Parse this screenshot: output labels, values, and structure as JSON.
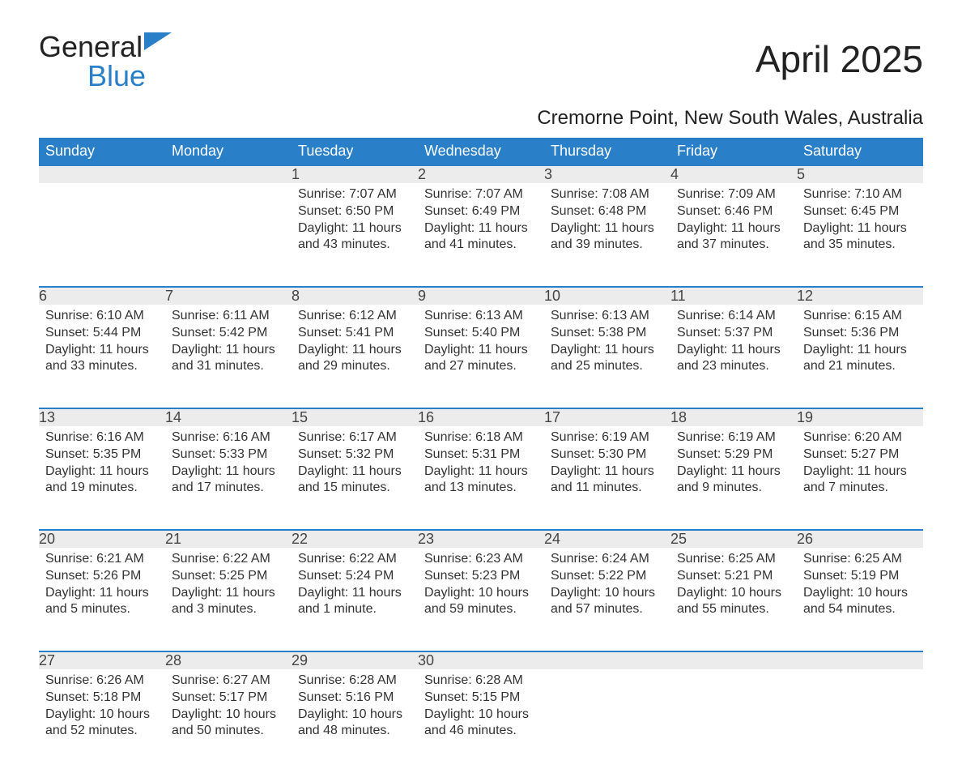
{
  "brand": {
    "word1": "General",
    "word2": "Blue",
    "text_color": "#222222",
    "accent_color": "#2a7fc9"
  },
  "title": "April 2025",
  "subtitle": "Cremorne Point, New South Wales, Australia",
  "colors": {
    "header_bg": "#2a7fc9",
    "header_text": "#ffffff",
    "daynum_bg": "#ececec",
    "daynum_border": "#2a7fc9",
    "body_text": "#333333",
    "page_bg": "#ffffff"
  },
  "typography": {
    "title_fontsize": 46,
    "subtitle_fontsize": 24,
    "header_fontsize": 18,
    "cell_fontsize": 16
  },
  "calendar": {
    "type": "table",
    "columns": [
      "Sunday",
      "Monday",
      "Tuesday",
      "Wednesday",
      "Thursday",
      "Friday",
      "Saturday"
    ],
    "weeks": [
      [
        null,
        null,
        {
          "day": "1",
          "sunrise": "Sunrise: 7:07 AM",
          "sunset": "Sunset: 6:50 PM",
          "daylight": "Daylight: 11 hours and 43 minutes."
        },
        {
          "day": "2",
          "sunrise": "Sunrise: 7:07 AM",
          "sunset": "Sunset: 6:49 PM",
          "daylight": "Daylight: 11 hours and 41 minutes."
        },
        {
          "day": "3",
          "sunrise": "Sunrise: 7:08 AM",
          "sunset": "Sunset: 6:48 PM",
          "daylight": "Daylight: 11 hours and 39 minutes."
        },
        {
          "day": "4",
          "sunrise": "Sunrise: 7:09 AM",
          "sunset": "Sunset: 6:46 PM",
          "daylight": "Daylight: 11 hours and 37 minutes."
        },
        {
          "day": "5",
          "sunrise": "Sunrise: 7:10 AM",
          "sunset": "Sunset: 6:45 PM",
          "daylight": "Daylight: 11 hours and 35 minutes."
        }
      ],
      [
        {
          "day": "6",
          "sunrise": "Sunrise: 6:10 AM",
          "sunset": "Sunset: 5:44 PM",
          "daylight": "Daylight: 11 hours and 33 minutes."
        },
        {
          "day": "7",
          "sunrise": "Sunrise: 6:11 AM",
          "sunset": "Sunset: 5:42 PM",
          "daylight": "Daylight: 11 hours and 31 minutes."
        },
        {
          "day": "8",
          "sunrise": "Sunrise: 6:12 AM",
          "sunset": "Sunset: 5:41 PM",
          "daylight": "Daylight: 11 hours and 29 minutes."
        },
        {
          "day": "9",
          "sunrise": "Sunrise: 6:13 AM",
          "sunset": "Sunset: 5:40 PM",
          "daylight": "Daylight: 11 hours and 27 minutes."
        },
        {
          "day": "10",
          "sunrise": "Sunrise: 6:13 AM",
          "sunset": "Sunset: 5:38 PM",
          "daylight": "Daylight: 11 hours and 25 minutes."
        },
        {
          "day": "11",
          "sunrise": "Sunrise: 6:14 AM",
          "sunset": "Sunset: 5:37 PM",
          "daylight": "Daylight: 11 hours and 23 minutes."
        },
        {
          "day": "12",
          "sunrise": "Sunrise: 6:15 AM",
          "sunset": "Sunset: 5:36 PM",
          "daylight": "Daylight: 11 hours and 21 minutes."
        }
      ],
      [
        {
          "day": "13",
          "sunrise": "Sunrise: 6:16 AM",
          "sunset": "Sunset: 5:35 PM",
          "daylight": "Daylight: 11 hours and 19 minutes."
        },
        {
          "day": "14",
          "sunrise": "Sunrise: 6:16 AM",
          "sunset": "Sunset: 5:33 PM",
          "daylight": "Daylight: 11 hours and 17 minutes."
        },
        {
          "day": "15",
          "sunrise": "Sunrise: 6:17 AM",
          "sunset": "Sunset: 5:32 PM",
          "daylight": "Daylight: 11 hours and 15 minutes."
        },
        {
          "day": "16",
          "sunrise": "Sunrise: 6:18 AM",
          "sunset": "Sunset: 5:31 PM",
          "daylight": "Daylight: 11 hours and 13 minutes."
        },
        {
          "day": "17",
          "sunrise": "Sunrise: 6:19 AM",
          "sunset": "Sunset: 5:30 PM",
          "daylight": "Daylight: 11 hours and 11 minutes."
        },
        {
          "day": "18",
          "sunrise": "Sunrise: 6:19 AM",
          "sunset": "Sunset: 5:29 PM",
          "daylight": "Daylight: 11 hours and 9 minutes."
        },
        {
          "day": "19",
          "sunrise": "Sunrise: 6:20 AM",
          "sunset": "Sunset: 5:27 PM",
          "daylight": "Daylight: 11 hours and 7 minutes."
        }
      ],
      [
        {
          "day": "20",
          "sunrise": "Sunrise: 6:21 AM",
          "sunset": "Sunset: 5:26 PM",
          "daylight": "Daylight: 11 hours and 5 minutes."
        },
        {
          "day": "21",
          "sunrise": "Sunrise: 6:22 AM",
          "sunset": "Sunset: 5:25 PM",
          "daylight": "Daylight: 11 hours and 3 minutes."
        },
        {
          "day": "22",
          "sunrise": "Sunrise: 6:22 AM",
          "sunset": "Sunset: 5:24 PM",
          "daylight": "Daylight: 11 hours and 1 minute."
        },
        {
          "day": "23",
          "sunrise": "Sunrise: 6:23 AM",
          "sunset": "Sunset: 5:23 PM",
          "daylight": "Daylight: 10 hours and 59 minutes."
        },
        {
          "day": "24",
          "sunrise": "Sunrise: 6:24 AM",
          "sunset": "Sunset: 5:22 PM",
          "daylight": "Daylight: 10 hours and 57 minutes."
        },
        {
          "day": "25",
          "sunrise": "Sunrise: 6:25 AM",
          "sunset": "Sunset: 5:21 PM",
          "daylight": "Daylight: 10 hours and 55 minutes."
        },
        {
          "day": "26",
          "sunrise": "Sunrise: 6:25 AM",
          "sunset": "Sunset: 5:19 PM",
          "daylight": "Daylight: 10 hours and 54 minutes."
        }
      ],
      [
        {
          "day": "27",
          "sunrise": "Sunrise: 6:26 AM",
          "sunset": "Sunset: 5:18 PM",
          "daylight": "Daylight: 10 hours and 52 minutes."
        },
        {
          "day": "28",
          "sunrise": "Sunrise: 6:27 AM",
          "sunset": "Sunset: 5:17 PM",
          "daylight": "Daylight: 10 hours and 50 minutes."
        },
        {
          "day": "29",
          "sunrise": "Sunrise: 6:28 AM",
          "sunset": "Sunset: 5:16 PM",
          "daylight": "Daylight: 10 hours and 48 minutes."
        },
        {
          "day": "30",
          "sunrise": "Sunrise: 6:28 AM",
          "sunset": "Sunset: 5:15 PM",
          "daylight": "Daylight: 10 hours and 46 minutes."
        },
        null,
        null,
        null
      ]
    ]
  }
}
